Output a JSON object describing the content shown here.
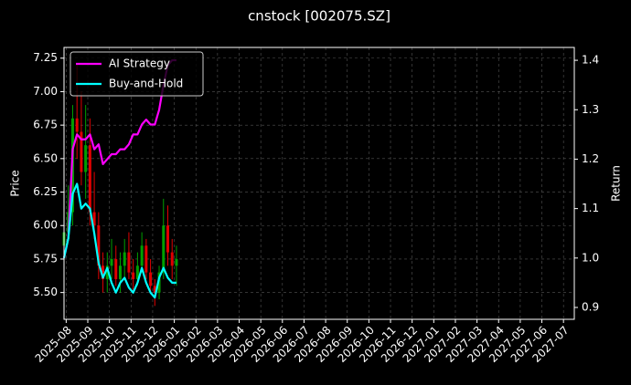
{
  "chart_data": {
    "type": "candlestick",
    "title": "cnstock [002075.SZ]",
    "ylabel": "Price",
    "y2label": "Return",
    "x": [
      -0.1,
      0.1,
      0.3,
      0.5,
      0.7,
      0.9,
      1.1,
      1.3,
      1.5,
      1.7,
      1.9,
      2.1,
      2.3,
      2.5,
      2.7,
      2.9,
      3.1,
      3.3,
      3.5,
      3.7,
      3.9,
      4.1,
      4.3,
      4.5,
      4.7,
      4.9,
      5.1
    ],
    "open": [
      5.85,
      5.95,
      6.1,
      6.8,
      6.7,
      6.4,
      6.6,
      6.1,
      6.0,
      5.7,
      5.6,
      5.7,
      5.75,
      5.6,
      5.7,
      5.8,
      5.65,
      5.6,
      5.7,
      5.85,
      5.65,
      5.55,
      5.5,
      5.65,
      6.0,
      5.8,
      5.7
    ],
    "high": [
      6.0,
      6.3,
      6.9,
      7.2,
      7.0,
      6.9,
      6.8,
      6.4,
      6.1,
      5.8,
      5.8,
      5.9,
      5.85,
      5.8,
      5.9,
      5.95,
      5.75,
      5.8,
      5.95,
      5.9,
      5.75,
      5.6,
      5.7,
      6.2,
      6.15,
      5.9,
      5.85
    ],
    "low": [
      5.8,
      5.9,
      6.0,
      6.5,
      6.3,
      6.2,
      6.0,
      5.9,
      5.6,
      5.5,
      5.5,
      5.6,
      5.55,
      5.5,
      5.6,
      5.6,
      5.5,
      5.55,
      5.65,
      5.6,
      5.5,
      5.4,
      5.45,
      5.6,
      5.7,
      5.6,
      5.55
    ],
    "close": [
      5.95,
      6.1,
      6.8,
      6.7,
      6.4,
      6.6,
      6.1,
      6.0,
      5.7,
      5.6,
      5.7,
      5.75,
      5.6,
      5.7,
      5.8,
      5.65,
      5.6,
      5.7,
      5.85,
      5.65,
      5.55,
      5.5,
      5.65,
      6.0,
      5.8,
      5.7,
      5.75
    ],
    "up_color": "#00a000",
    "down_color": "#e00000",
    "series": [
      {
        "name": "AI Strategy",
        "color": "#ff00ff",
        "axis": "y2",
        "values": [
          1.0,
          1.04,
          1.22,
          1.25,
          1.24,
          1.24,
          1.25,
          1.22,
          1.23,
          1.19,
          1.2,
          1.21,
          1.21,
          1.22,
          1.22,
          1.23,
          1.25,
          1.25,
          1.27,
          1.28,
          1.27,
          1.27,
          1.3,
          1.35,
          1.39,
          1.4,
          1.4
        ]
      },
      {
        "name": "Buy-and-Hold",
        "color": "#00ffff",
        "axis": "y2",
        "values": [
          1.0,
          1.04,
          1.13,
          1.15,
          1.1,
          1.11,
          1.1,
          1.05,
          0.99,
          0.96,
          0.98,
          0.95,
          0.93,
          0.95,
          0.96,
          0.94,
          0.93,
          0.95,
          0.98,
          0.95,
          0.93,
          0.92,
          0.96,
          0.98,
          0.96,
          0.95,
          0.95
        ]
      }
    ],
    "xlim": [
      -0.1,
      23.5
    ],
    "xticks": [
      {
        "value": 0,
        "label": "2025-08"
      },
      {
        "value": 1,
        "label": "2025-09"
      },
      {
        "value": 2,
        "label": "2025-10"
      },
      {
        "value": 3,
        "label": "2025-11"
      },
      {
        "value": 4,
        "label": "2025-12"
      },
      {
        "value": 5,
        "label": "2026-01"
      },
      {
        "value": 6,
        "label": "2026-02"
      },
      {
        "value": 7,
        "label": "2026-03"
      },
      {
        "value": 8,
        "label": "2026-04"
      },
      {
        "value": 9,
        "label": "2026-05"
      },
      {
        "value": 10,
        "label": "2026-06"
      },
      {
        "value": 11,
        "label": "2026-07"
      },
      {
        "value": 12,
        "label": "2026-08"
      },
      {
        "value": 13,
        "label": "2026-09"
      },
      {
        "value": 14,
        "label": "2026-10"
      },
      {
        "value": 15,
        "label": "2026-11"
      },
      {
        "value": 16,
        "label": "2026-12"
      },
      {
        "value": 17,
        "label": "2027-01"
      },
      {
        "value": 18,
        "label": "2027-02"
      },
      {
        "value": 19,
        "label": "2027-03"
      },
      {
        "value": 20,
        "label": "2027-04"
      },
      {
        "value": 21,
        "label": "2027-05"
      },
      {
        "value": 22,
        "label": "2027-06"
      },
      {
        "value": 23,
        "label": "2027-07"
      }
    ],
    "ylim": [
      5.3,
      7.33
    ],
    "yticks": [
      {
        "value": 5.5,
        "label": "5.50"
      },
      {
        "value": 5.75,
        "label": "5.75"
      },
      {
        "value": 6,
        "label": "6.00"
      },
      {
        "value": 6.25,
        "label": "6.25"
      },
      {
        "value": 6.5,
        "label": "6.50"
      },
      {
        "value": 6.75,
        "label": "6.75"
      },
      {
        "value": 7,
        "label": "7.00"
      },
      {
        "value": 7.25,
        "label": "7.25"
      }
    ],
    "y2lim": [
      0.876,
      1.426
    ],
    "y2ticks": [
      {
        "value": 0.9,
        "label": "0.9"
      },
      {
        "value": 1,
        "label": "1.0"
      },
      1.1,
      1.2,
      1.3,
      1.4
    ],
    "grid": true,
    "legend": "upper left"
  }
}
